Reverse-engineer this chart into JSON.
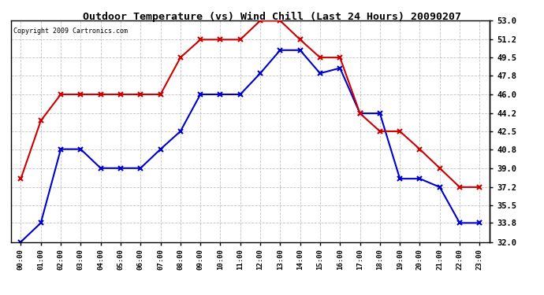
{
  "title": "Outdoor Temperature (vs) Wind Chill (Last 24 Hours) 20090207",
  "copyright": "Copyright 2009 Cartronics.com",
  "hours": [
    "00:00",
    "01:00",
    "02:00",
    "03:00",
    "04:00",
    "05:00",
    "06:00",
    "07:00",
    "08:00",
    "09:00",
    "10:00",
    "11:00",
    "12:00",
    "13:00",
    "14:00",
    "15:00",
    "16:00",
    "17:00",
    "18:00",
    "19:00",
    "20:00",
    "21:00",
    "22:00",
    "23:00"
  ],
  "outdoor_temp": [
    38.0,
    43.5,
    46.0,
    46.0,
    46.0,
    46.0,
    46.0,
    46.0,
    49.5,
    51.2,
    51.2,
    51.2,
    53.0,
    53.0,
    51.2,
    49.5,
    49.5,
    44.2,
    42.5,
    42.5,
    40.8,
    39.0,
    37.2,
    37.2
  ],
  "wind_chill": [
    32.0,
    33.8,
    40.8,
    40.8,
    39.0,
    39.0,
    39.0,
    40.8,
    42.5,
    46.0,
    46.0,
    46.0,
    48.0,
    50.2,
    50.2,
    48.0,
    48.5,
    44.2,
    44.2,
    38.0,
    38.0,
    37.2,
    33.8,
    33.8
  ],
  "ylim": [
    32.0,
    53.0
  ],
  "yticks": [
    32.0,
    33.8,
    35.5,
    37.2,
    39.0,
    40.8,
    42.5,
    44.2,
    46.0,
    47.8,
    49.5,
    51.2,
    53.0
  ],
  "ytick_labels": [
    "32.0",
    "33.8",
    "35.5",
    "37.2",
    "39.0",
    "40.8",
    "42.5",
    "44.2",
    "46.0",
    "47.8",
    "49.5",
    "51.2",
    "53.0"
  ],
  "temp_color": "#cc0000",
  "wind_color": "#0000cc",
  "grid_color": "#bbbbbb",
  "bg_color": "#ffffff"
}
